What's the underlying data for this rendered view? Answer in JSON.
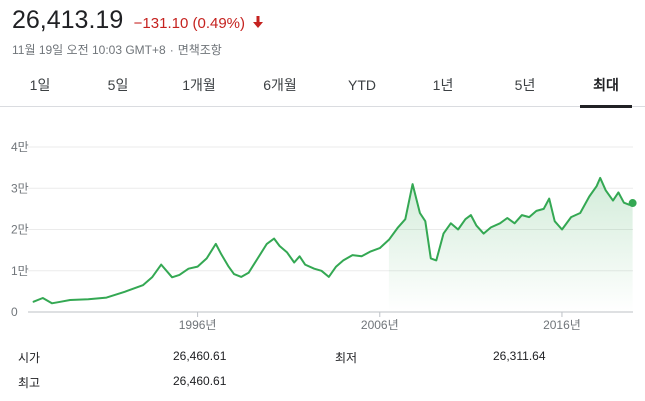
{
  "quote": {
    "price": "26,413.19",
    "change": "−131.10 (0.49%)",
    "direction": "down",
    "change_color": "#c5221f",
    "timestamp": "11월 19일 오전 10:03 GMT+8",
    "separator": "·",
    "disclaimer": "면책조항"
  },
  "tabs": [
    {
      "label": "1일",
      "active": false
    },
    {
      "label": "5일",
      "active": false
    },
    {
      "label": "1개월",
      "active": false
    },
    {
      "label": "6개월",
      "active": false
    },
    {
      "label": "YTD",
      "active": false
    },
    {
      "label": "1년",
      "active": false
    },
    {
      "label": "5년",
      "active": false
    },
    {
      "label": "최대",
      "active": true
    }
  ],
  "stats": {
    "open_label": "시가",
    "open_value": "26,460.61",
    "high_label": "최고",
    "high_value": "26,460.61",
    "low_label": "최저",
    "low_value": "26,311.64"
  },
  "chart_data": {
    "type": "line",
    "series_color": "#34a853",
    "ylim": [
      0,
      40000
    ],
    "xlim": [
      1986.8,
      2019.9
    ],
    "y_ticks": [
      {
        "value": 0,
        "label": "0"
      },
      {
        "value": 10000,
        "label": "1만"
      },
      {
        "value": 20000,
        "label": "2만"
      },
      {
        "value": 30000,
        "label": "3만"
      },
      {
        "value": 40000,
        "label": "4만"
      }
    ],
    "x_ticks": [
      {
        "value": 1996,
        "label": "1996년"
      },
      {
        "value": 2006,
        "label": "2006년"
      },
      {
        "value": 2016,
        "label": "2016년"
      }
    ],
    "grid": true,
    "x": [
      1987.0,
      1987.5,
      1988.0,
      1988.5,
      1989.0,
      1990.0,
      1991.0,
      1992.0,
      1993.0,
      1993.5,
      1994.0,
      1994.6,
      1995.0,
      1995.5,
      1996.0,
      1996.5,
      1997.0,
      1997.3,
      1997.7,
      1998.0,
      1998.4,
      1998.8,
      1999.3,
      1999.8,
      2000.2,
      2000.5,
      2000.9,
      2001.3,
      2001.6,
      2001.9,
      2002.4,
      2002.8,
      2003.2,
      2003.6,
      2004.0,
      2004.5,
      2005.0,
      2005.5,
      2006.0,
      2006.5,
      2007.0,
      2007.4,
      2007.8,
      2008.2,
      2008.5,
      2008.8,
      2009.1,
      2009.5,
      2009.9,
      2010.3,
      2010.7,
      2011.0,
      2011.3,
      2011.7,
      2012.1,
      2012.6,
      2013.0,
      2013.4,
      2013.8,
      2014.2,
      2014.6,
      2015.0,
      2015.3,
      2015.6,
      2016.0,
      2016.5,
      2017.0,
      2017.5,
      2017.9,
      2018.1,
      2018.4,
      2018.8,
      2019.1,
      2019.4,
      2019.7,
      2019.88
    ],
    "values": [
      2500,
      3400,
      2100,
      2500,
      2900,
      3100,
      3500,
      4900,
      6500,
      8400,
      11500,
      8400,
      9000,
      10500,
      11000,
      13000,
      16500,
      14000,
      11000,
      9200,
      8500,
      9500,
      13000,
      16500,
      17800,
      16000,
      14500,
      12000,
      13500,
      11500,
      10500,
      10000,
      8500,
      11000,
      12500,
      13800,
      13500,
      14700,
      15500,
      17500,
      20500,
      22500,
      31000,
      24000,
      22000,
      13000,
      12500,
      19000,
      21500,
      20000,
      22500,
      23500,
      21000,
      19000,
      20500,
      21500,
      22800,
      21500,
      23500,
      23000,
      24500,
      25000,
      27500,
      22000,
      20000,
      23000,
      24000,
      28000,
      30500,
      32500,
      29500,
      27000,
      29000,
      26500,
      26000,
      26413
    ]
  }
}
